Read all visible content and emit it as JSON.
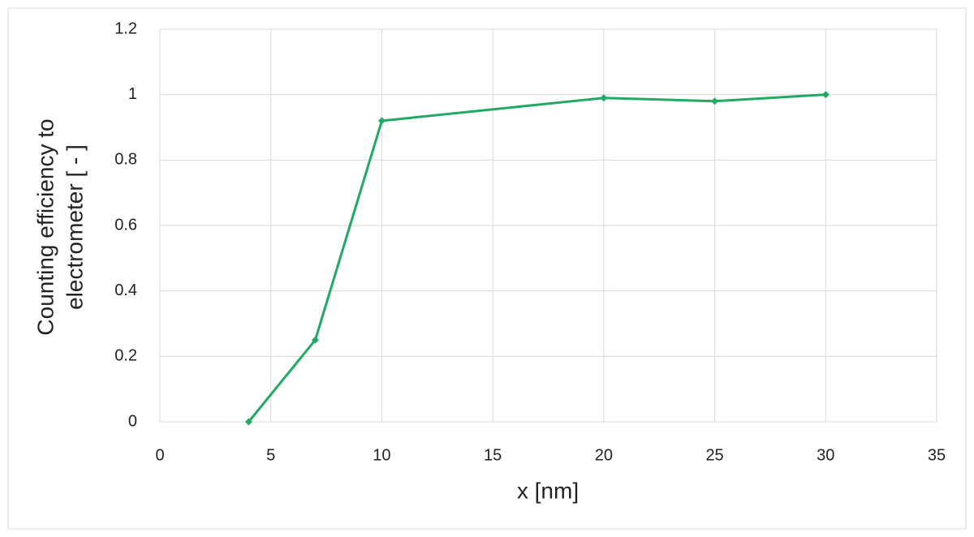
{
  "chart_data": {
    "type": "line",
    "x_label": "x [nm]",
    "y_label": [
      "Counting efficiency to",
      "electrometer [ - ]"
    ],
    "x": [
      4,
      7,
      10,
      20,
      25,
      30
    ],
    "values": [
      0,
      0.25,
      0.92,
      0.99,
      0.98,
      1.0
    ],
    "color": "#21a862",
    "xlim": [
      0,
      35
    ],
    "xticks": [
      0,
      5,
      10,
      15,
      20,
      25,
      30,
      35
    ],
    "ylim": [
      0,
      1.2
    ],
    "yticks": [
      0,
      0.2,
      0.4,
      0.6,
      0.8,
      1,
      1.2
    ],
    "grid": true
  }
}
